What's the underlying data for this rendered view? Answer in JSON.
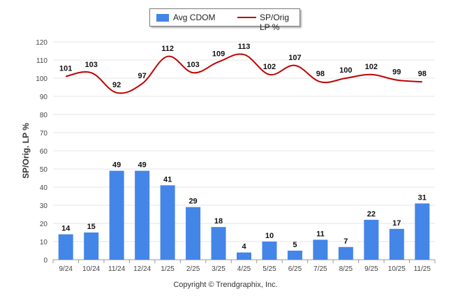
{
  "chart_data": {
    "type": "bar",
    "categories": [
      "9/24",
      "10/24",
      "11/24",
      "12/24",
      "1/25",
      "2/25",
      "3/25",
      "4/25",
      "5/25",
      "6/25",
      "7/25",
      "8/25",
      "9/25",
      "10/25",
      "11/25"
    ],
    "series": [
      {
        "name": "Avg CDOM",
        "kind": "bar",
        "color": "#4485e8",
        "values": [
          14,
          15,
          49,
          49,
          41,
          29,
          18,
          4,
          10,
          5,
          11,
          7,
          22,
          17,
          31
        ]
      },
      {
        "name": "SP/Orig LP %",
        "kind": "line",
        "color": "#c00000",
        "values": [
          101,
          103,
          92,
          97,
          112,
          103,
          109,
          113,
          102,
          107,
          98,
          100,
          102,
          99,
          98
        ]
      }
    ],
    "ylabel": "SP/Orig. LP %",
    "xlabel": "",
    "ylim": [
      0,
      120
    ],
    "yticks": [
      0,
      10,
      20,
      30,
      40,
      50,
      60,
      70,
      80,
      90,
      100,
      110,
      120
    ],
    "grid": true,
    "legend_position": "top-center"
  },
  "footer": {
    "copyright": "Copyright © Trendgraphix, Inc."
  }
}
